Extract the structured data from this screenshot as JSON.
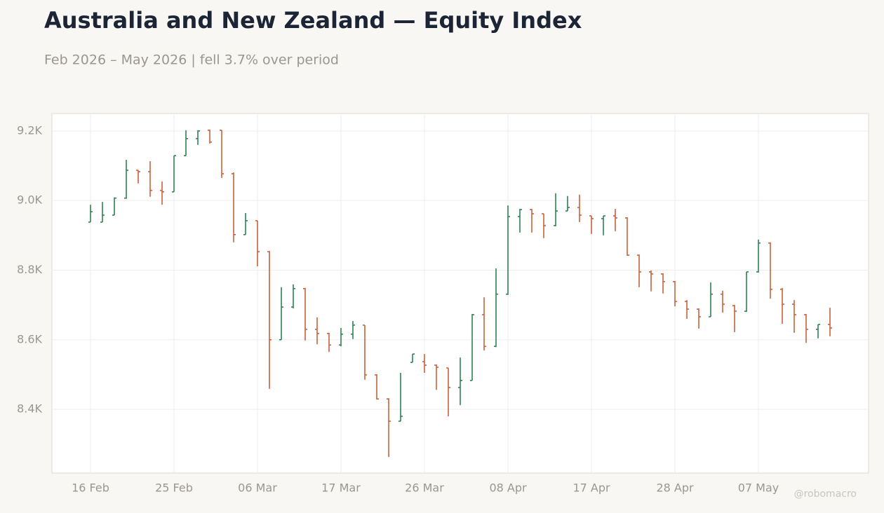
{
  "chart_data": {
    "type": "ohlc",
    "title": "Australia and New Zealand — Equity Index",
    "subtitle": "Feb 2026 – May 2026 | fell 3.7% over period",
    "watermark": "@robomacro",
    "categories": [
      "16 Feb",
      null,
      null,
      null,
      null,
      null,
      null,
      "25 Feb",
      null,
      null,
      null,
      null,
      null,
      null,
      "06 Mar",
      null,
      null,
      null,
      null,
      null,
      null,
      "17 Mar",
      null,
      null,
      null,
      null,
      null,
      null,
      "26 Mar",
      null,
      null,
      null,
      null,
      null,
      null,
      "08 Apr",
      null,
      null,
      null,
      null,
      null,
      null,
      "17 Apr",
      null,
      null,
      null,
      null,
      null,
      null,
      "28 Apr",
      null,
      null,
      null,
      null,
      null,
      null,
      "07 May",
      null,
      null,
      null,
      null,
      null,
      null
    ],
    "open": [
      8938,
      8938,
      8958,
      9007,
      9087,
      9083,
      9029,
      9025,
      9129,
      9178,
      9202,
      9202,
      9077,
      8902,
      8942,
      8853,
      8600,
      8694,
      8747,
      8630,
      8618,
      8585,
      8616,
      8642,
      8499,
      8430,
      8366,
      8535,
      8537,
      8527,
      8519,
      8463,
      8483,
      8672,
      8581,
      8731,
      8954,
      8974,
      8962,
      8928,
      8970,
      8980,
      8956,
      8948,
      8956,
      8950,
      8843,
      8795,
      8789,
      8767,
      8710,
      8688,
      8666,
      8731,
      8698,
      8682,
      8795,
      8878,
      8745,
      8702,
      8672,
      8630,
      8644
    ],
    "high": [
      8988,
      8996,
      9009,
      9117,
      9087,
      9113,
      9055,
      9129,
      9202,
      9202,
      9204,
      9202,
      9081,
      8964,
      8942,
      8855,
      8751,
      8759,
      8749,
      8664,
      8620,
      8634,
      8654,
      8642,
      8501,
      8432,
      8505,
      8559,
      8559,
      8529,
      8519,
      8549,
      8674,
      8722,
      8805,
      8986,
      8976,
      8976,
      8962,
      9021,
      9013,
      9017,
      8956,
      8956,
      8976,
      8952,
      8845,
      8799,
      8791,
      8769,
      8714,
      8690,
      8765,
      8741,
      8700,
      8795,
      8888,
      8880,
      8749,
      8714,
      8674,
      8644,
      8692
    ],
    "low": [
      8938,
      8938,
      8958,
      9005,
      9049,
      9011,
      8988,
      9025,
      9129,
      9160,
      9164,
      9065,
      8880,
      8902,
      8811,
      8459,
      8600,
      8690,
      8598,
      8587,
      8565,
      8581,
      8602,
      8485,
      8428,
      8263,
      8366,
      8535,
      8505,
      8456,
      8380,
      8412,
      8483,
      8569,
      8579,
      8729,
      8908,
      8908,
      8892,
      8926,
      8970,
      8938,
      8904,
      8900,
      8912,
      8841,
      8751,
      8739,
      8733,
      8696,
      8660,
      8632,
      8666,
      8678,
      8622,
      8680,
      8793,
      8718,
      8646,
      8620,
      8591,
      8604,
      8610
    ],
    "close": [
      8968,
      8958,
      9007,
      9087,
      9083,
      9029,
      9025,
      9129,
      9178,
      9200,
      9168,
      9077,
      8902,
      8942,
      8853,
      8600,
      8694,
      8747,
      8630,
      8618,
      8585,
      8616,
      8642,
      8499,
      8430,
      8366,
      8380,
      8559,
      8527,
      8521,
      8463,
      8483,
      8672,
      8581,
      8731,
      8954,
      8974,
      8962,
      8928,
      8970,
      8980,
      8958,
      8948,
      8956,
      8950,
      8843,
      8795,
      8789,
      8767,
      8710,
      8688,
      8666,
      8731,
      8702,
      8682,
      8795,
      8878,
      8745,
      8702,
      8672,
      8630,
      8644,
      8634
    ],
    "up_color": "#2e8150",
    "down_color": "#c8603c",
    "ylim": [
      8217,
      9250
    ],
    "yticks": [
      {
        "value": 8400,
        "label": "8.4K"
      },
      {
        "value": 8600,
        "label": "8.6K"
      },
      {
        "value": 8800,
        "label": "8.8K"
      },
      {
        "value": 9000,
        "label": "9.0K"
      },
      {
        "value": 9200,
        "label": "9.2K"
      }
    ],
    "grid": true
  }
}
